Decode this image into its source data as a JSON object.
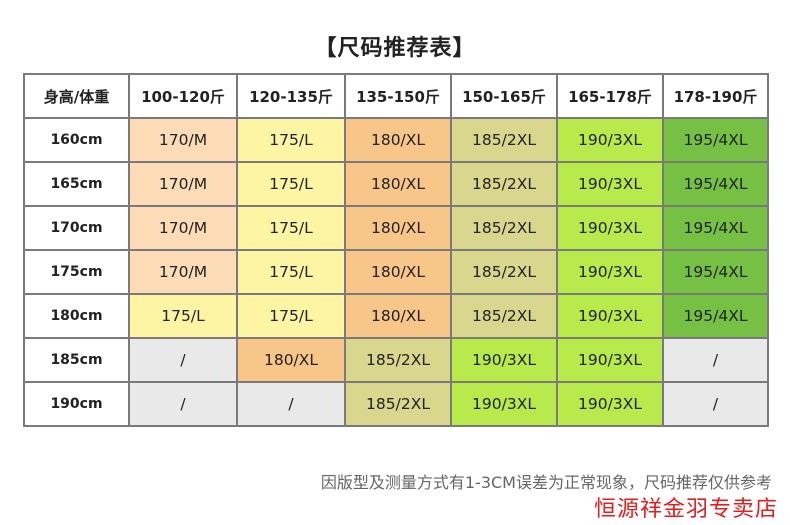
{
  "title": "【尺码推荐表】",
  "table": {
    "corner": "身高/体重",
    "columns": [
      "100-120斤",
      "120-135斤",
      "135-150斤",
      "150-165斤",
      "165-178斤",
      "178-190斤"
    ],
    "rows": [
      {
        "height": "160cm",
        "cells": [
          "170/M",
          "175/L",
          "180/XL",
          "185/2XL",
          "190/3XL",
          "195/4XL"
        ]
      },
      {
        "height": "165cm",
        "cells": [
          "170/M",
          "175/L",
          "180/XL",
          "185/2XL",
          "190/3XL",
          "195/4XL"
        ]
      },
      {
        "height": "170cm",
        "cells": [
          "170/M",
          "175/L",
          "180/XL",
          "185/2XL",
          "190/3XL",
          "195/4XL"
        ]
      },
      {
        "height": "175cm",
        "cells": [
          "170/M",
          "175/L",
          "180/XL",
          "185/2XL",
          "190/3XL",
          "195/4XL"
        ]
      },
      {
        "height": "180cm",
        "cells": [
          "175/L",
          "175/L",
          "180/XL",
          "185/2XL",
          "190/3XL",
          "195/4XL"
        ]
      },
      {
        "height": "185cm",
        "cells": [
          "/",
          "180/XL",
          "185/2XL",
          "190/3XL",
          "190/3XL",
          "/"
        ]
      },
      {
        "height": "190cm",
        "cells": [
          "/",
          "/",
          "185/2XL",
          "190/3XL",
          "190/3XL",
          "/"
        ]
      }
    ]
  },
  "size_colors": {
    "170/M": "#fbdcb6",
    "175/L": "#fdf5a3",
    "180/XL": "#f9c68a",
    "185/2XL": "#d9d68e",
    "190/3XL": "#b9ea4b",
    "195/4XL": "#76c043",
    "/": "#e9e9e9"
  },
  "note": "因版型及测量方式有1-3CM误差为正常现象，尺码推荐仅供参考",
  "shop_name": "恒源祥金羽专卖店"
}
